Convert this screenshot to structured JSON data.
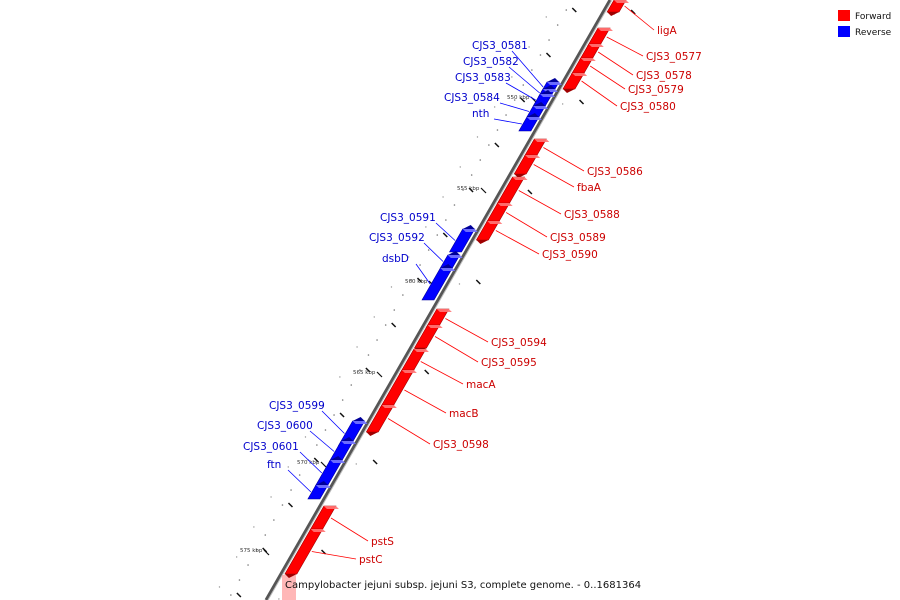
{
  "caption": "Campylobacter jejuni subsp. jejuni S3, complete genome. - 0..1681364",
  "legend": {
    "forward": {
      "label": "Forward",
      "color": "#ff0000"
    },
    "reverse": {
      "label": "Reverse",
      "color": "#0000ff"
    }
  },
  "ticks": [
    {
      "kbp": 550,
      "label": "550 kbp"
    },
    {
      "kbp": 555,
      "label": "555 kbp"
    },
    {
      "kbp": 560,
      "label": "560 kbp"
    },
    {
      "kbp": 565,
      "label": "565 kbp"
    },
    {
      "kbp": 570,
      "label": "570 kbp"
    },
    {
      "kbp": 575,
      "label": "575 kbp"
    }
  ],
  "genes": [
    {
      "name": "ligA",
      "strand": "forward"
    },
    {
      "name": "CJS3_0577",
      "strand": "forward"
    },
    {
      "name": "CJS3_0578",
      "strand": "forward"
    },
    {
      "name": "CJS3_0579",
      "strand": "forward"
    },
    {
      "name": "CJS3_0580",
      "strand": "forward"
    },
    {
      "name": "CJS3_0581",
      "strand": "reverse"
    },
    {
      "name": "CJS3_0582",
      "strand": "reverse"
    },
    {
      "name": "CJS3_0583",
      "strand": "reverse"
    },
    {
      "name": "CJS3_0584",
      "strand": "reverse"
    },
    {
      "name": "nth",
      "strand": "reverse"
    },
    {
      "name": "CJS3_0586",
      "strand": "forward"
    },
    {
      "name": "fbaA",
      "strand": "forward"
    },
    {
      "name": "CJS3_0588",
      "strand": "forward"
    },
    {
      "name": "CJS3_0589",
      "strand": "forward"
    },
    {
      "name": "CJS3_0590",
      "strand": "forward"
    },
    {
      "name": "CJS3_0591",
      "strand": "reverse"
    },
    {
      "name": "CJS3_0592",
      "strand": "reverse"
    },
    {
      "name": "dsbD",
      "strand": "reverse"
    },
    {
      "name": "CJS3_0594",
      "strand": "forward"
    },
    {
      "name": "CJS3_0595",
      "strand": "forward"
    },
    {
      "name": "macA",
      "strand": "forward"
    },
    {
      "name": "macB",
      "strand": "forward"
    },
    {
      "name": "CJS3_0598",
      "strand": "forward"
    },
    {
      "name": "CJS3_0599",
      "strand": "reverse"
    },
    {
      "name": "CJS3_0600",
      "strand": "reverse"
    },
    {
      "name": "CJS3_0601",
      "strand": "reverse"
    },
    {
      "name": "ftn",
      "strand": "reverse"
    },
    {
      "name": "pstS",
      "strand": "forward"
    },
    {
      "name": "pstC",
      "strand": "forward"
    }
  ]
}
